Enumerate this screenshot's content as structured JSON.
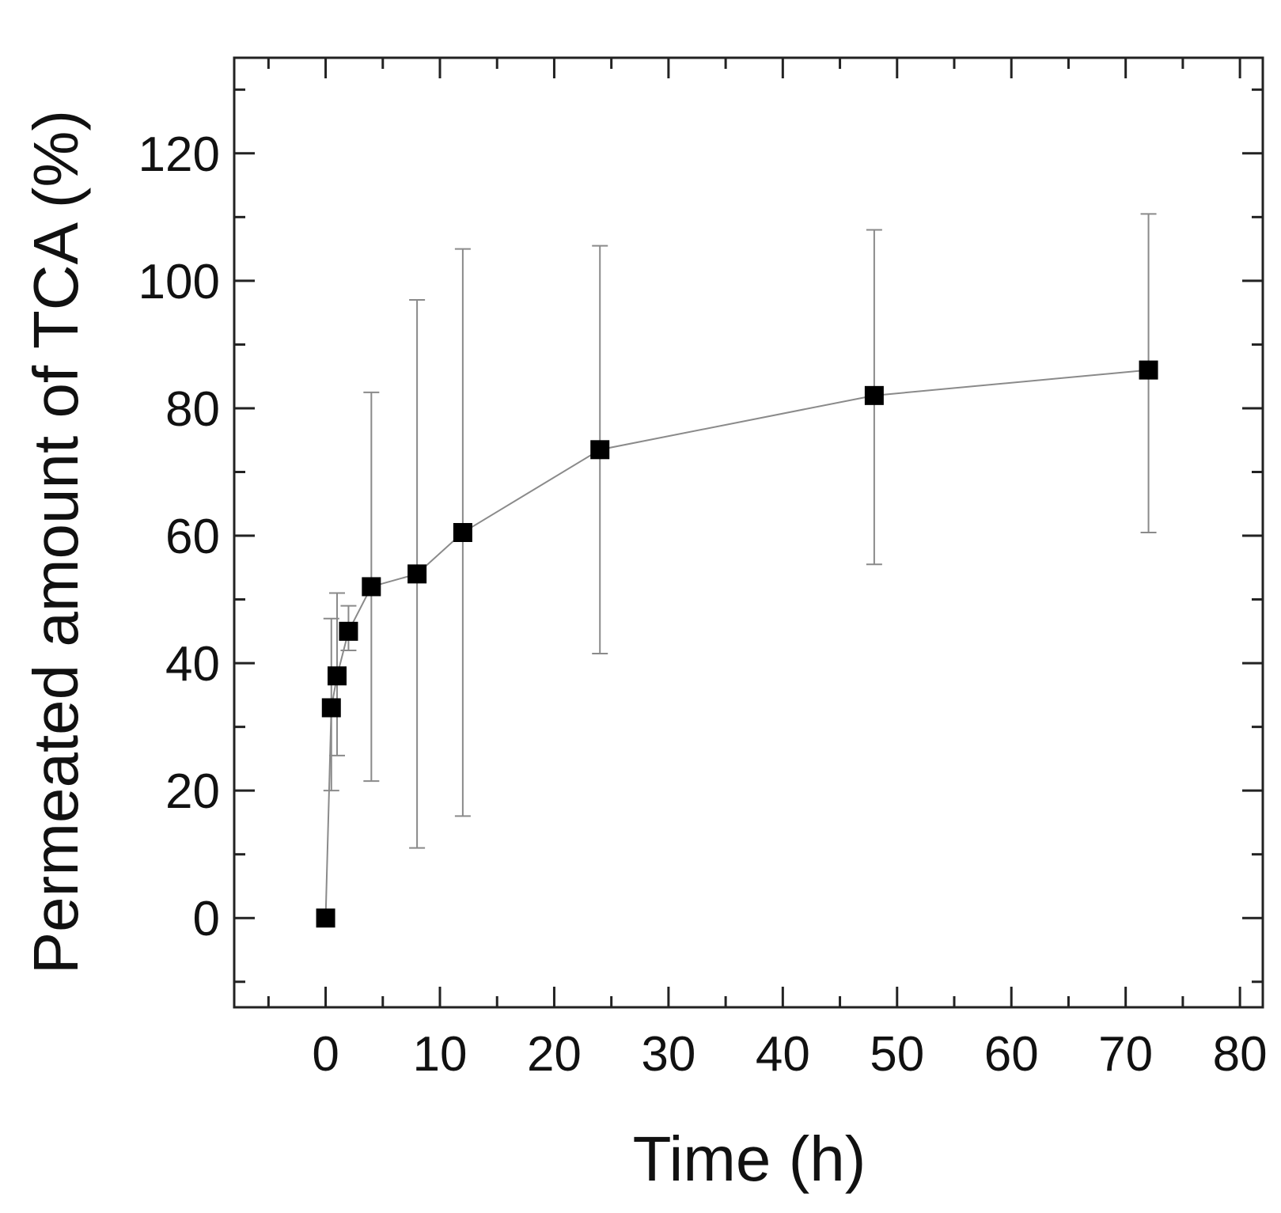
{
  "chart_data": {
    "type": "scatter",
    "title": "",
    "xlabel": "Time (h)",
    "ylabel": "Permeated amount of TCA (%)",
    "xlim": [
      -8,
      82
    ],
    "ylim": [
      -14,
      135
    ],
    "x_ticks": [
      0,
      10,
      20,
      30,
      40,
      50,
      60,
      70,
      80
    ],
    "x_tick_labels": [
      "0",
      "10",
      "20",
      "30",
      "40",
      "50",
      "60",
      "70",
      "80"
    ],
    "x_minor_ticks": [
      -5,
      5,
      15,
      25,
      35,
      45,
      55,
      65,
      75
    ],
    "y_ticks": [
      0,
      20,
      40,
      60,
      80,
      100,
      120
    ],
    "y_tick_labels": [
      "0",
      "20",
      "40",
      "60",
      "80",
      "100",
      "120"
    ],
    "y_minor_ticks": [
      -10,
      10,
      30,
      50,
      70,
      90,
      110,
      130
    ],
    "grid": false,
    "legend": "none",
    "series": [
      {
        "name": "TCA",
        "marker": "square",
        "x": [
          0,
          0.5,
          1,
          2,
          4,
          8,
          12,
          24,
          48,
          72
        ],
        "y": [
          0,
          33,
          38,
          45,
          52,
          54,
          60.5,
          73.5,
          82,
          86
        ],
        "error_upper": [
          0,
          47,
          51,
          49,
          82.5,
          97,
          105,
          105.5,
          108,
          110.5
        ],
        "error_lower": [
          0,
          20,
          25.5,
          42,
          21.5,
          11,
          16,
          41.5,
          55.5,
          60.5
        ]
      }
    ]
  }
}
